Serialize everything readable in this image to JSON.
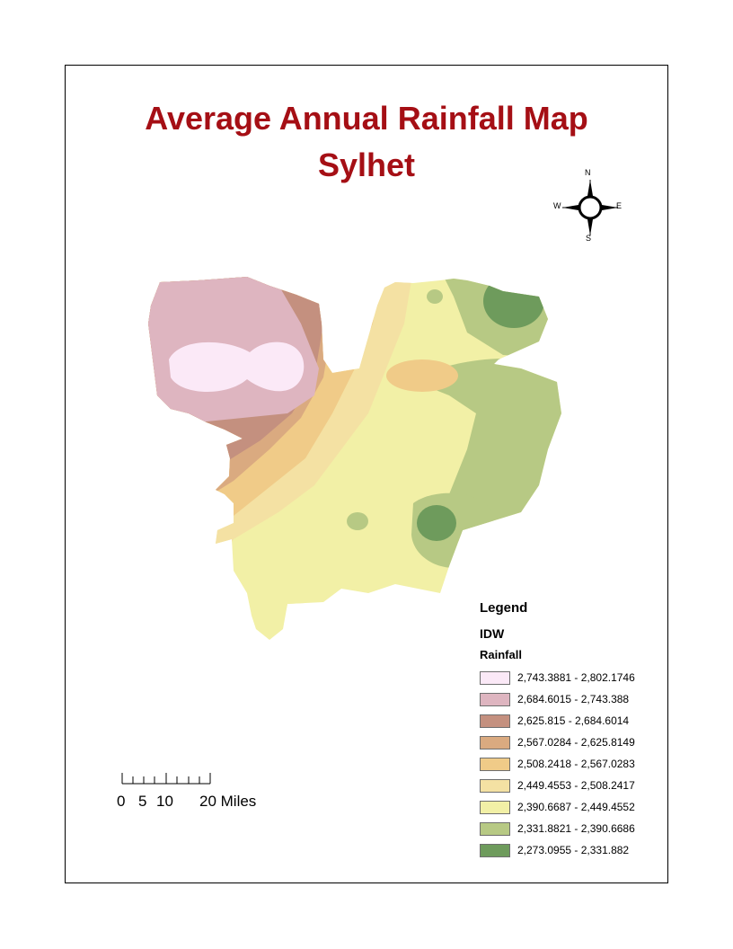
{
  "title": {
    "line1": "Average Annual Rainfall Map",
    "line2": "Sylhet"
  },
  "north_arrow": {
    "n": "N",
    "s": "S",
    "e": "E",
    "w": "W"
  },
  "legend": {
    "title": "Legend",
    "layer": "IDW",
    "field": "Rainfall",
    "classes": [
      {
        "label": "2,743.3881 - 2,802.1746",
        "color": "#fbe9f7"
      },
      {
        "label": "2,684.6015 - 2,743.388",
        "color": "#deb5c0"
      },
      {
        "label": "2,625.815 - 2,684.6014",
        "color": "#c4907f"
      },
      {
        "label": "2,567.0284 - 2,625.8149",
        "color": "#daaa80"
      },
      {
        "label": "2,508.2418 - 2,567.0283",
        "color": "#f0cb88"
      },
      {
        "label": "2,449.4553 - 2,508.2417",
        "color": "#f4e1a3"
      },
      {
        "label": "2,390.6687 - 2,449.4552",
        "color": "#f2f0a6"
      },
      {
        "label": "2,331.8821 - 2,390.6686",
        "color": "#b7c984"
      },
      {
        "label": "2,273.0955 - 2,331.882",
        "color": "#6e9b5c"
      }
    ]
  },
  "scale_bar": {
    "labels": [
      "0",
      "5",
      "10",
      "20 Miles"
    ]
  }
}
